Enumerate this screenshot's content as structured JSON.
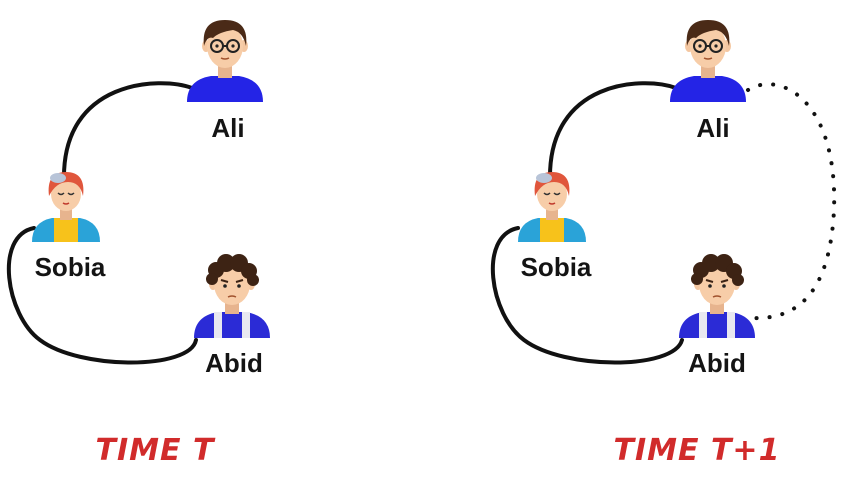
{
  "panels": [
    {
      "caption": "TIME T",
      "people": {
        "ali": {
          "name": "Ali"
        },
        "sobia": {
          "name": "Sobia"
        },
        "abid": {
          "name": "Abid"
        }
      }
    },
    {
      "caption": "TIME T+1",
      "people": {
        "ali": {
          "name": "Ali"
        },
        "sobia": {
          "name": "Sobia"
        },
        "abid": {
          "name": "Abid"
        }
      },
      "new_link": "ali-abid"
    }
  ],
  "colors": {
    "edge": "#111111",
    "caption": "#d12b2b",
    "ali_shirt": "#2424e6",
    "abid_shirt": "#2b2bd6",
    "sobia_shirt": "#2aa3d8",
    "sobia_hair": "#e0563c",
    "skin": "#f4c7a1"
  }
}
